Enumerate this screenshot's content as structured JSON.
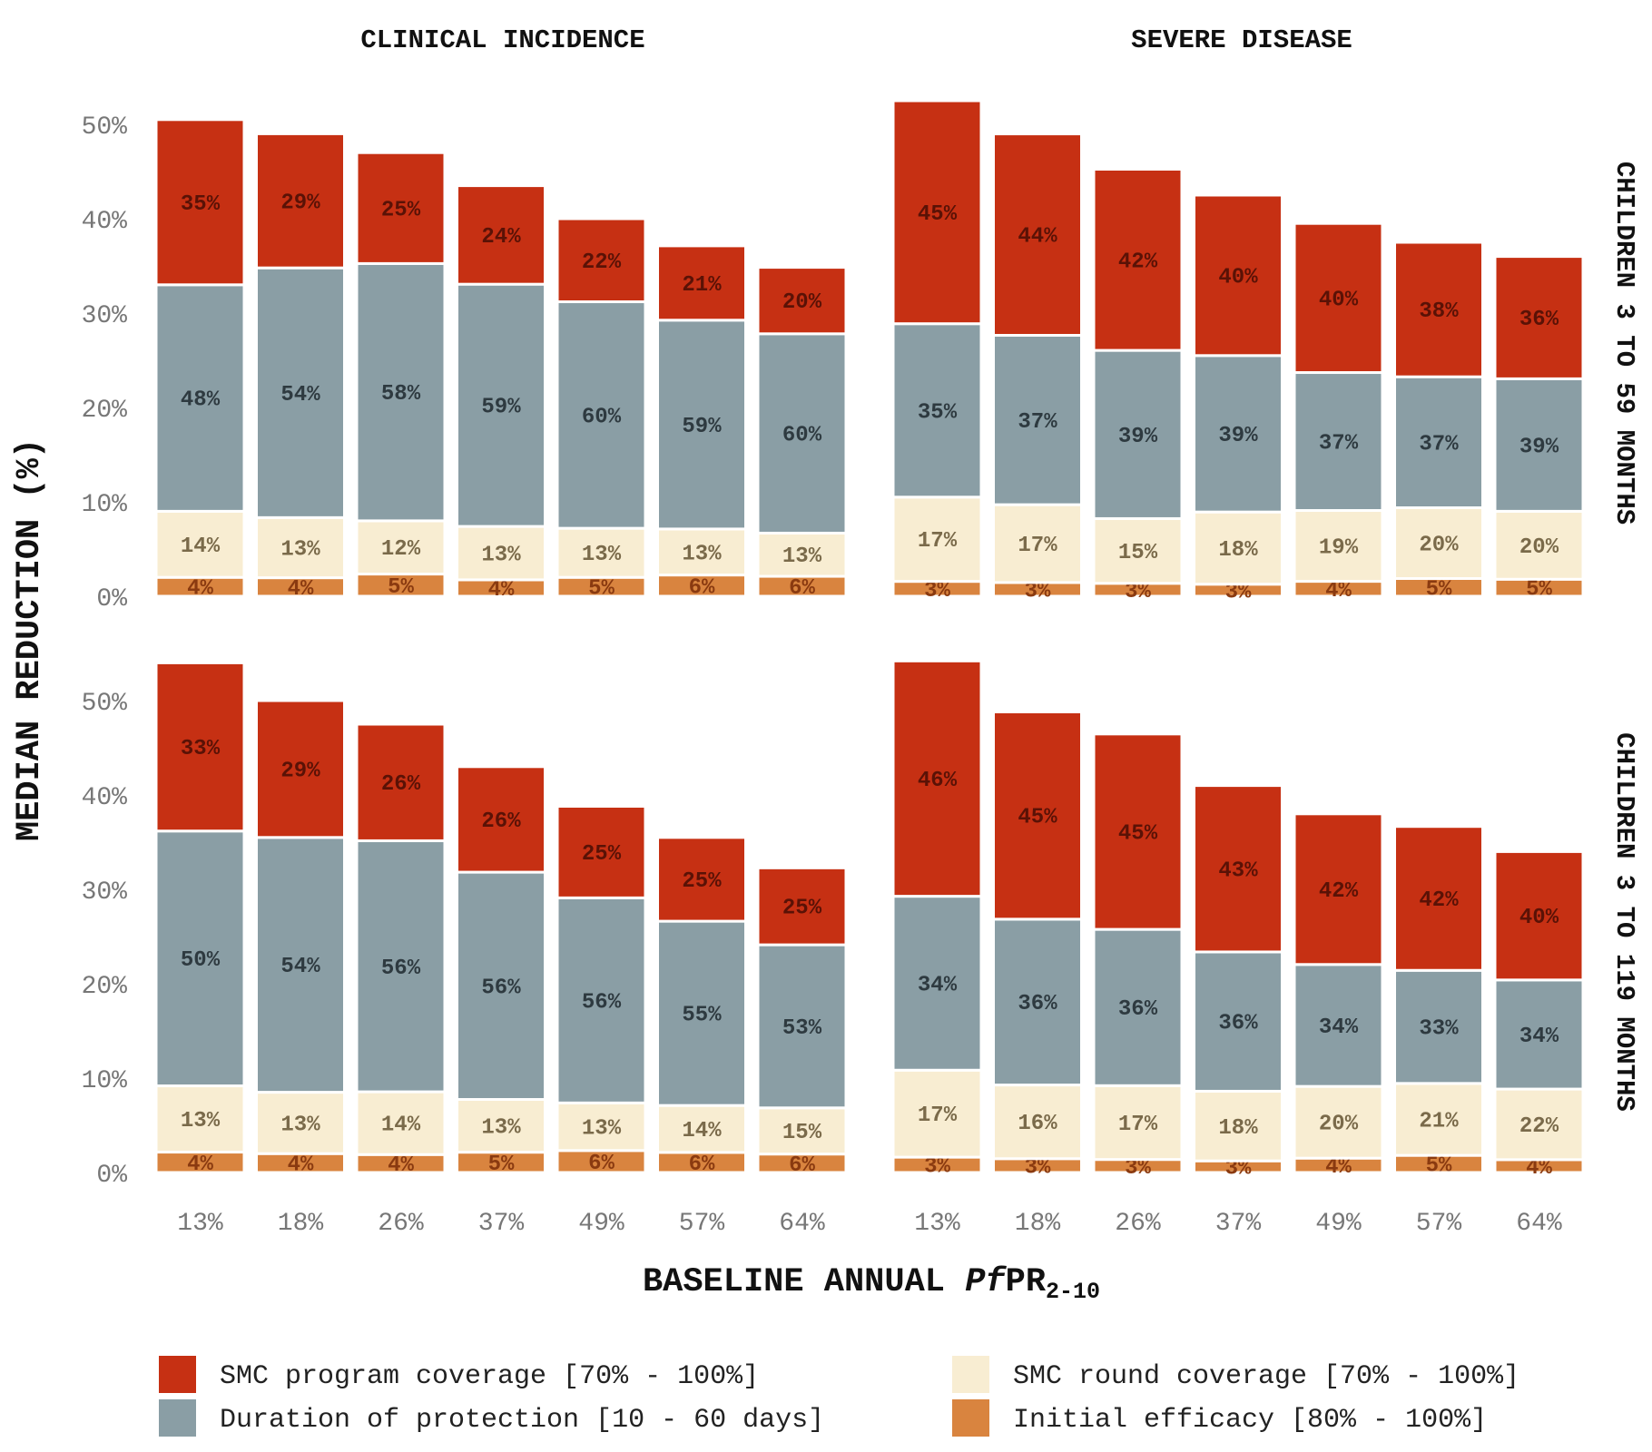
{
  "chart_data": {
    "type": "bar",
    "stacked": true,
    "x_categories": [
      "13%",
      "18%",
      "26%",
      "37%",
      "49%",
      "57%",
      "64%"
    ],
    "y_ticks": [
      "0%",
      "10%",
      "20%",
      "30%",
      "40%",
      "50%"
    ],
    "ylim": [
      0,
      55
    ],
    "xlabel_prefix": "BASELINE ANNUAL ",
    "xlabel_italic": "Pf",
    "xlabel_main": "PR",
    "xlabel_sub": "2-10",
    "ylabel": "MEDIAN REDUCTION (%)",
    "column_titles": [
      "CLINICAL INCIDENCE",
      "SEVERE DISEASE"
    ],
    "row_titles": [
      "CHILDREN 3 TO 59 MONTHS",
      "CHILDREN 3 TO 119 MONTHS"
    ],
    "legend_position": "bottom",
    "grid": false,
    "series": [
      {
        "key": "efficacy",
        "name": "Initial efficacy [80% - 100%]",
        "color": "#D9843F",
        "label_color": "#8a3a10"
      },
      {
        "key": "round",
        "name": "SMC round coverage [70% - 100%]",
        "color": "#F8EDD2",
        "label_color": "#7a6a4a"
      },
      {
        "key": "duration",
        "name": "Duration of protection [10 - 60 days]",
        "color": "#8A9EA5",
        "label_color": "#2e3a40"
      },
      {
        "key": "program",
        "name": "SMC program coverage [70% - 100%]",
        "color": "#C63013",
        "label_color": "#5a1206"
      }
    ],
    "panels": [
      {
        "row": 0,
        "col": 0,
        "totals": [
          50,
          49,
          47,
          43.5,
          40,
          37.5,
          35.2
        ],
        "shares": {
          "efficacy": [
            "4%",
            "4%",
            "5%",
            "4%",
            "5%",
            "6%",
            "6%"
          ],
          "round": [
            "14%",
            "13%",
            "12%",
            "13%",
            "13%",
            "13%",
            "13%"
          ],
          "duration": [
            "48%",
            "54%",
            "58%",
            "59%",
            "60%",
            "59%",
            "60%"
          ],
          "program": [
            "35%",
            "29%",
            "25%",
            "24%",
            "22%",
            "21%",
            "20%"
          ]
        }
      },
      {
        "row": 0,
        "col": 1,
        "totals": [
          52.5,
          48.5,
          45.7,
          42.5,
          39.5,
          37.5,
          36
        ],
        "shares": {
          "efficacy": [
            "3%",
            "3%",
            "3%",
            "3%",
            "4%",
            "5%",
            "5%"
          ],
          "round": [
            "17%",
            "17%",
            "15%",
            "18%",
            "19%",
            "20%",
            "20%"
          ],
          "duration": [
            "35%",
            "37%",
            "39%",
            "39%",
            "37%",
            "37%",
            "39%"
          ],
          "program": [
            "45%",
            "44%",
            "42%",
            "40%",
            "40%",
            "38%",
            "36%"
          ]
        }
      },
      {
        "row": 1,
        "col": 0,
        "totals": [
          54,
          50,
          47.5,
          43,
          38.8,
          35.5,
          32.6
        ],
        "shares": {
          "efficacy": [
            "4%",
            "4%",
            "4%",
            "5%",
            "6%",
            "6%",
            "6%"
          ],
          "round": [
            "13%",
            "13%",
            "14%",
            "13%",
            "13%",
            "14%",
            "15%"
          ],
          "duration": [
            "50%",
            "54%",
            "56%",
            "56%",
            "56%",
            "55%",
            "53%"
          ],
          "program": [
            "33%",
            "29%",
            "26%",
            "26%",
            "25%",
            "25%",
            "25%"
          ]
        }
      },
      {
        "row": 1,
        "col": 1,
        "totals": [
          54.2,
          48.8,
          46,
          41,
          38,
          36.3,
          34
        ],
        "shares": {
          "efficacy": [
            "3%",
            "3%",
            "3%",
            "3%",
            "4%",
            "5%",
            "4%"
          ],
          "round": [
            "17%",
            "16%",
            "17%",
            "18%",
            "20%",
            "21%",
            "22%"
          ],
          "duration": [
            "34%",
            "36%",
            "36%",
            "36%",
            "34%",
            "33%",
            "34%"
          ],
          "program": [
            "46%",
            "45%",
            "45%",
            "43%",
            "42%",
            "42%",
            "40%"
          ]
        }
      }
    ]
  }
}
